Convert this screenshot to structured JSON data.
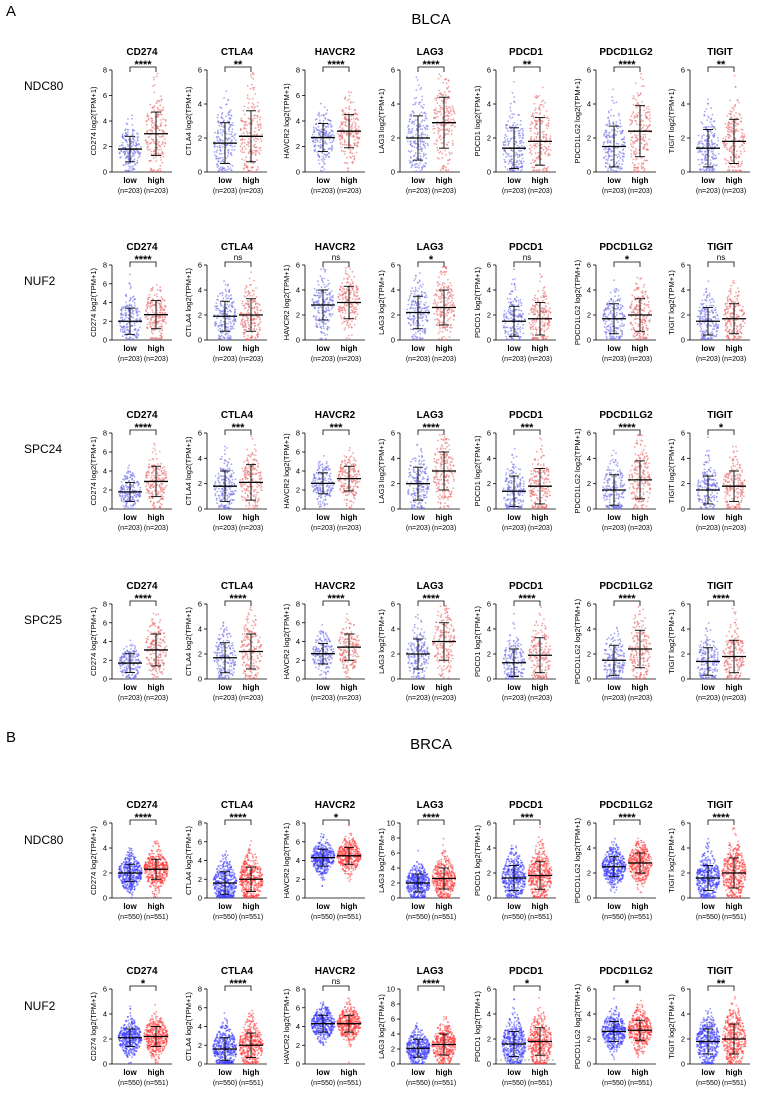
{
  "panels": [
    {
      "letter": "A",
      "title": "BLCA",
      "categories": [
        "low",
        "high"
      ],
      "n_labels": [
        "(n=203)",
        "(n=203)"
      ],
      "axis_suffix": " log2(TPM+1)",
      "rows": [
        {
          "gene": "NDC80",
          "charts": [
            {
              "marker": "CD274",
              "ymax": 8,
              "yticks": [
                0,
                2,
                4,
                6,
                8
              ],
              "means": [
                1.8,
                3.0
              ],
              "sds": [
                1.0,
                1.7
              ],
              "sig": "****"
            },
            {
              "marker": "CTLA4",
              "ymax": 6,
              "yticks": [
                0,
                2,
                4,
                6
              ],
              "means": [
                1.7,
                2.1
              ],
              "sds": [
                1.2,
                1.5
              ],
              "sig": "**"
            },
            {
              "marker": "HAVCR2",
              "ymax": 8,
              "yticks": [
                0,
                2,
                4,
                6,
                8
              ],
              "means": [
                2.7,
                3.2
              ],
              "sds": [
                1.1,
                1.3
              ],
              "sig": "****"
            },
            {
              "marker": "LAG3",
              "ymax": 6,
              "yticks": [
                0,
                2,
                4,
                6
              ],
              "means": [
                2.0,
                2.9
              ],
              "sds": [
                1.3,
                1.5
              ],
              "sig": "****"
            },
            {
              "marker": "PDCD1",
              "ymax": 6,
              "yticks": [
                0,
                2,
                4,
                6
              ],
              "means": [
                1.4,
                1.8
              ],
              "sds": [
                1.2,
                1.4
              ],
              "sig": "**"
            },
            {
              "marker": "PDCD1LG2",
              "ymax": 6,
              "yticks": [
                0,
                2,
                4,
                6
              ],
              "means": [
                1.5,
                2.4
              ],
              "sds": [
                1.2,
                1.5
              ],
              "sig": "****"
            },
            {
              "marker": "TIGIT",
              "ymax": 6,
              "yticks": [
                0,
                2,
                4,
                6
              ],
              "means": [
                1.4,
                1.8
              ],
              "sds": [
                1.1,
                1.3
              ],
              "sig": "**"
            }
          ]
        },
        {
          "gene": "NUF2",
          "charts": [
            {
              "marker": "CD274",
              "ymax": 8,
              "yticks": [
                0,
                2,
                4,
                6,
                8
              ],
              "means": [
                2.0,
                2.7
              ],
              "sds": [
                1.4,
                1.5
              ],
              "sig": "****"
            },
            {
              "marker": "CTLA4",
              "ymax": 6,
              "yticks": [
                0,
                2,
                4,
                6
              ],
              "means": [
                1.9,
                2.0
              ],
              "sds": [
                1.2,
                1.3
              ],
              "sig": "ns"
            },
            {
              "marker": "HAVCR2",
              "ymax": 6,
              "yticks": [
                0,
                2,
                4,
                6
              ],
              "means": [
                2.8,
                3.0
              ],
              "sds": [
                1.2,
                1.3
              ],
              "sig": "ns"
            },
            {
              "marker": "LAG3",
              "ymax": 6,
              "yticks": [
                0,
                2,
                4,
                6
              ],
              "means": [
                2.2,
                2.6
              ],
              "sds": [
                1.3,
                1.4
              ],
              "sig": "*"
            },
            {
              "marker": "PDCD1",
              "ymax": 6,
              "yticks": [
                0,
                2,
                4,
                6
              ],
              "means": [
                1.5,
                1.7
              ],
              "sds": [
                1.2,
                1.3
              ],
              "sig": "ns"
            },
            {
              "marker": "PDCD1LG2",
              "ymax": 6,
              "yticks": [
                0,
                2,
                4,
                6
              ],
              "means": [
                1.7,
                2.0
              ],
              "sds": [
                1.2,
                1.3
              ],
              "sig": "*"
            },
            {
              "marker": "TIGIT",
              "ymax": 6,
              "yticks": [
                0,
                2,
                4,
                6
              ],
              "means": [
                1.5,
                1.7
              ],
              "sds": [
                1.1,
                1.2
              ],
              "sig": "ns"
            }
          ]
        },
        {
          "gene": "SPC24",
          "charts": [
            {
              "marker": "CD274",
              "ymax": 8,
              "yticks": [
                0,
                2,
                4,
                6,
                8
              ],
              "means": [
                1.8,
                2.9
              ],
              "sds": [
                1.0,
                1.6
              ],
              "sig": "****"
            },
            {
              "marker": "CTLA4",
              "ymax": 6,
              "yticks": [
                0,
                2,
                4,
                6
              ],
              "means": [
                1.8,
                2.1
              ],
              "sds": [
                1.2,
                1.4
              ],
              "sig": "***"
            },
            {
              "marker": "HAVCR2",
              "ymax": 8,
              "yticks": [
                0,
                2,
                4,
                6,
                8
              ],
              "means": [
                2.7,
                3.2
              ],
              "sds": [
                1.1,
                1.3
              ],
              "sig": "***"
            },
            {
              "marker": "LAG3",
              "ymax": 6,
              "yticks": [
                0,
                2,
                4,
                6
              ],
              "means": [
                2.0,
                3.0
              ],
              "sds": [
                1.3,
                1.5
              ],
              "sig": "****"
            },
            {
              "marker": "PDCD1",
              "ymax": 6,
              "yticks": [
                0,
                2,
                4,
                6
              ],
              "means": [
                1.4,
                1.8
              ],
              "sds": [
                1.2,
                1.4
              ],
              "sig": "***"
            },
            {
              "marker": "PDCD1LG2",
              "ymax": 6,
              "yticks": [
                0,
                2,
                4,
                6
              ],
              "means": [
                1.5,
                2.3
              ],
              "sds": [
                1.2,
                1.5
              ],
              "sig": "****"
            },
            {
              "marker": "TIGIT",
              "ymax": 6,
              "yticks": [
                0,
                2,
                4,
                6
              ],
              "means": [
                1.5,
                1.8
              ],
              "sds": [
                1.1,
                1.2
              ],
              "sig": "*"
            }
          ]
        },
        {
          "gene": "SPC25",
          "charts": [
            {
              "marker": "CD274",
              "ymax": 8,
              "yticks": [
                0,
                2,
                4,
                6,
                8
              ],
              "means": [
                1.7,
                3.1
              ],
              "sds": [
                1.0,
                1.7
              ],
              "sig": "****"
            },
            {
              "marker": "CTLA4",
              "ymax": 6,
              "yticks": [
                0,
                2,
                4,
                6
              ],
              "means": [
                1.7,
                2.2
              ],
              "sds": [
                1.2,
                1.4
              ],
              "sig": "****"
            },
            {
              "marker": "HAVCR2",
              "ymax": 8,
              "yticks": [
                0,
                2,
                4,
                6,
                8
              ],
              "means": [
                2.7,
                3.4
              ],
              "sds": [
                1.1,
                1.4
              ],
              "sig": "****"
            },
            {
              "marker": "LAG3",
              "ymax": 6,
              "yticks": [
                0,
                2,
                4,
                6
              ],
              "means": [
                2.0,
                3.0
              ],
              "sds": [
                1.2,
                1.5
              ],
              "sig": "****"
            },
            {
              "marker": "PDCD1",
              "ymax": 6,
              "yticks": [
                0,
                2,
                4,
                6
              ],
              "means": [
                1.3,
                1.9
              ],
              "sds": [
                1.1,
                1.4
              ],
              "sig": "****"
            },
            {
              "marker": "PDCD1LG2",
              "ymax": 6,
              "yticks": [
                0,
                2,
                4,
                6
              ],
              "means": [
                1.5,
                2.4
              ],
              "sds": [
                1.2,
                1.5
              ],
              "sig": "****"
            },
            {
              "marker": "TIGIT",
              "ymax": 6,
              "yticks": [
                0,
                2,
                4,
                6
              ],
              "means": [
                1.4,
                1.8
              ],
              "sds": [
                1.1,
                1.3
              ],
              "sig": "****"
            }
          ]
        }
      ]
    },
    {
      "letter": "B",
      "title": "BRCA",
      "categories": [
        "low",
        "high"
      ],
      "n_labels": [
        "(n=550)",
        "(n=551)"
      ],
      "axis_suffix": " log2(TPM+1)",
      "rows": [
        {
          "gene": "NDC80",
          "charts": [
            {
              "marker": "CD274",
              "ymax": 6,
              "yticks": [
                0,
                2,
                4,
                6
              ],
              "means": [
                2.0,
                2.3
              ],
              "sds": [
                0.7,
                0.8
              ],
              "sig": "****"
            },
            {
              "marker": "CTLA4",
              "ymax": 8,
              "yticks": [
                0,
                2,
                4,
                6,
                8
              ],
              "means": [
                1.6,
                2.0
              ],
              "sds": [
                1.2,
                1.3
              ],
              "sig": "****"
            },
            {
              "marker": "HAVCR2",
              "ymax": 8,
              "yticks": [
                0,
                2,
                4,
                6,
                8
              ],
              "means": [
                4.3,
                4.5
              ],
              "sds": [
                0.9,
                0.9
              ],
              "sig": "*"
            },
            {
              "marker": "LAG3",
              "ymax": 10,
              "yticks": [
                0,
                2,
                4,
                6,
                8,
                10
              ],
              "means": [
                2.0,
                2.6
              ],
              "sds": [
                1.2,
                1.4
              ],
              "sig": "****"
            },
            {
              "marker": "PDCD1",
              "ymax": 6,
              "yticks": [
                0,
                2,
                4,
                6
              ],
              "means": [
                1.6,
                1.8
              ],
              "sds": [
                1.0,
                1.1
              ],
              "sig": "***"
            },
            {
              "marker": "PDCD1LG2",
              "ymax": 6,
              "yticks": [
                0,
                2,
                4,
                6
              ],
              "means": [
                2.5,
                2.8
              ],
              "sds": [
                0.8,
                0.8
              ],
              "sig": "****"
            },
            {
              "marker": "TIGIT",
              "ymax": 6,
              "yticks": [
                0,
                2,
                4,
                6
              ],
              "means": [
                1.6,
                2.0
              ],
              "sds": [
                1.0,
                1.2
              ],
              "sig": "****"
            }
          ]
        },
        {
          "gene": "NUF2",
          "charts": [
            {
              "marker": "CD274",
              "ymax": 6,
              "yticks": [
                0,
                2,
                4,
                6
              ],
              "means": [
                2.1,
                2.2
              ],
              "sds": [
                0.7,
                0.8
              ],
              "sig": "*"
            },
            {
              "marker": "CTLA4",
              "ymax": 8,
              "yticks": [
                0,
                2,
                4,
                6,
                8
              ],
              "means": [
                1.6,
                2.0
              ],
              "sds": [
                1.2,
                1.3
              ],
              "sig": "****"
            },
            {
              "marker": "HAVCR2",
              "ymax": 8,
              "yticks": [
                0,
                2,
                4,
                6,
                8
              ],
              "means": [
                4.3,
                4.3
              ],
              "sds": [
                0.9,
                0.9
              ],
              "sig": "ns"
            },
            {
              "marker": "LAG3",
              "ymax": 10,
              "yticks": [
                0,
                2,
                4,
                6,
                8,
                10
              ],
              "means": [
                2.1,
                2.6
              ],
              "sds": [
                1.2,
                1.4
              ],
              "sig": "****"
            },
            {
              "marker": "PDCD1",
              "ymax": 6,
              "yticks": [
                0,
                2,
                4,
                6
              ],
              "means": [
                1.6,
                1.8
              ],
              "sds": [
                1.0,
                1.1
              ],
              "sig": "*"
            },
            {
              "marker": "PDCD1LG2",
              "ymax": 6,
              "yticks": [
                0,
                2,
                4,
                6
              ],
              "means": [
                2.6,
                2.7
              ],
              "sds": [
                0.8,
                0.8
              ],
              "sig": "*"
            },
            {
              "marker": "TIGIT",
              "ymax": 6,
              "yticks": [
                0,
                2,
                4,
                6
              ],
              "means": [
                1.8,
                2.0
              ],
              "sds": [
                1.0,
                1.2
              ],
              "sig": "**"
            }
          ]
        }
      ]
    }
  ],
  "colors": {
    "low": "#6f6fe6",
    "high": "#e86a6a",
    "low_dense": "#3b3bff",
    "high_dense": "#ff3b3b",
    "axis": "#000000",
    "summary": "#000000",
    "ref_line": "#888888"
  }
}
